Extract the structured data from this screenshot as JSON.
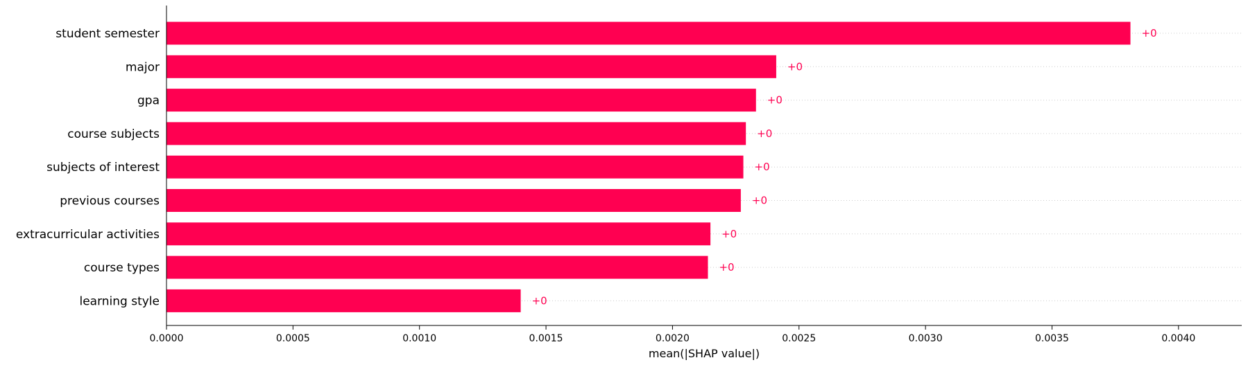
{
  "chart_data": {
    "type": "bar",
    "orientation": "horizontal",
    "title": "",
    "xlabel": "mean(|SHAP value|)",
    "ylabel": "",
    "xlim": [
      0,
      0.00425
    ],
    "x_ticks": [
      0.0,
      0.0005,
      0.001,
      0.0015,
      0.002,
      0.0025,
      0.003,
      0.0035,
      0.004
    ],
    "x_tick_labels": [
      "0.0000",
      "0.0005",
      "0.0010",
      "0.0015",
      "0.0020",
      "0.0025",
      "0.0030",
      "0.0035",
      "0.0040"
    ],
    "grid": "dotted horizontal guide lines per bar",
    "legend": "none",
    "bar_color": "#ff0051",
    "value_label_color": "#ff0051",
    "categories": [
      "student semester",
      "major",
      "gpa",
      "course subjects",
      "subjects of interest",
      "previous courses",
      "extracurricular activities",
      "course types",
      "learning style"
    ],
    "values": [
      0.00381,
      0.00241,
      0.00233,
      0.00229,
      0.00228,
      0.00227,
      0.00215,
      0.00214,
      0.0014
    ],
    "value_labels": [
      "+0",
      "+0",
      "+0",
      "+0",
      "+0",
      "+0",
      "+0",
      "+0",
      "+0"
    ]
  }
}
